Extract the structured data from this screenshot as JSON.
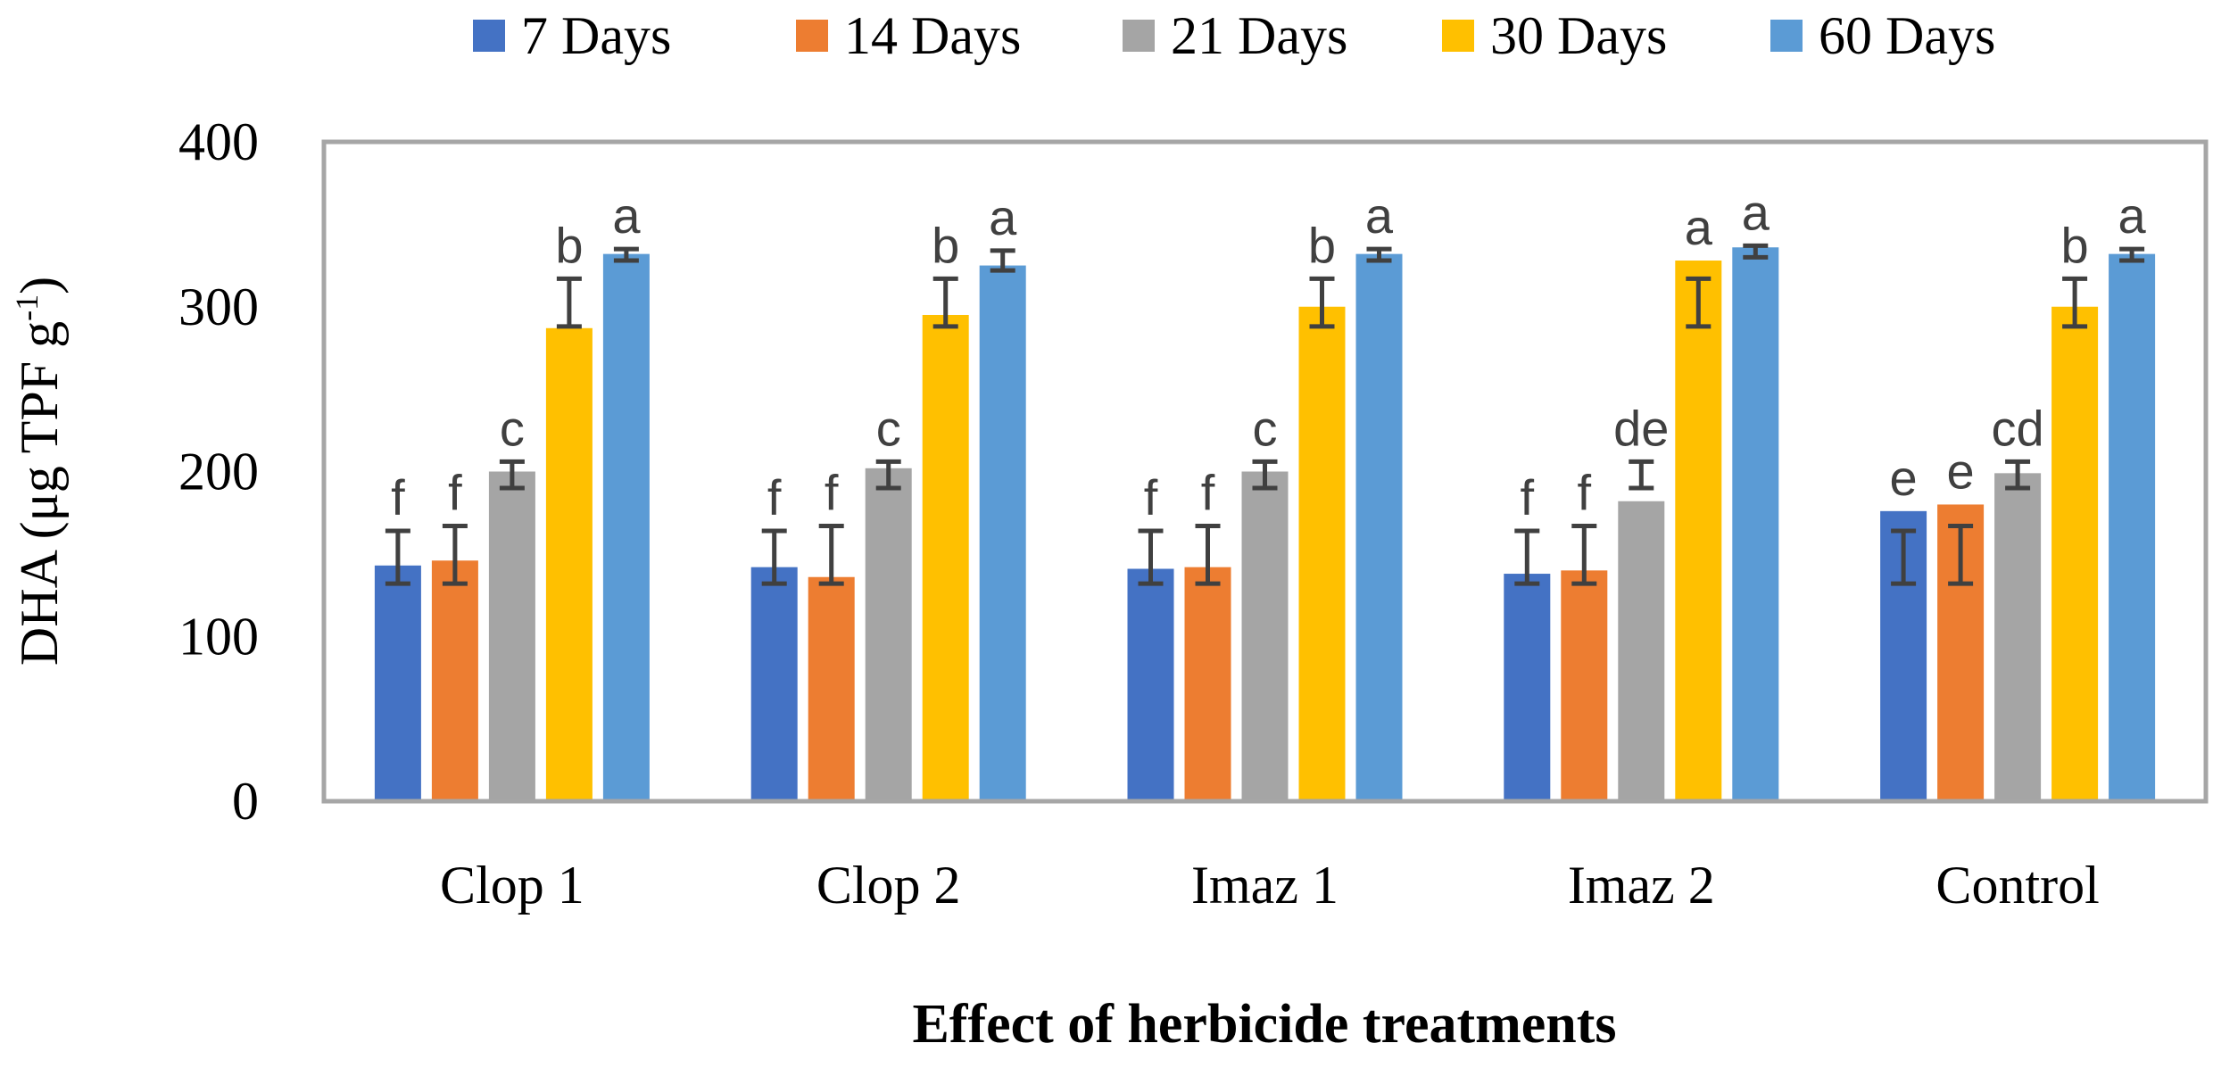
{
  "chart_data": {
    "type": "bar",
    "xlabel": "Effect of herbicide treatments",
    "ylabel_main": "DHA (μg TPF g",
    "ylabel_sup": "-1",
    "ylabel_close": ")",
    "ylim": [
      0,
      400
    ],
    "yticks": [
      0,
      100,
      200,
      300,
      400
    ],
    "grid": false,
    "legend_position": "top",
    "categories": [
      "Clop 1",
      "Clop 2",
      "Imaz 1",
      "Imaz 2",
      "Control"
    ],
    "series": [
      {
        "name": "7 Days",
        "color": "#4472C4",
        "values": [
          143,
          142,
          141,
          138,
          176
        ],
        "errors": [
          [
            132,
            164
          ],
          [
            132,
            164
          ],
          [
            132,
            164
          ],
          [
            132,
            164
          ],
          [
            132,
            164
          ]
        ],
        "letters": [
          "f",
          "f",
          "f",
          "f",
          "e"
        ]
      },
      {
        "name": "14 Days",
        "color": "#ED7D31",
        "values": [
          146,
          136,
          142,
          140,
          180
        ],
        "errors": [
          [
            132,
            167
          ],
          [
            132,
            167
          ],
          [
            132,
            167
          ],
          [
            132,
            167
          ],
          [
            132,
            167
          ]
        ],
        "letters": [
          "f",
          "f",
          "f",
          "f",
          "e"
        ]
      },
      {
        "name": "21 Days",
        "color": "#A5A5A5",
        "values": [
          200,
          202,
          200,
          182,
          199
        ],
        "errors": [
          [
            190,
            206
          ],
          [
            190,
            206
          ],
          [
            190,
            206
          ],
          [
            190,
            206
          ],
          [
            190,
            206
          ]
        ],
        "letters": [
          "c",
          "c",
          "c",
          "de",
          "cd"
        ]
      },
      {
        "name": "30 Days",
        "color": "#FFC000",
        "values": [
          287,
          295,
          300,
          328,
          300
        ],
        "errors": [
          [
            288,
            317
          ],
          [
            288,
            317
          ],
          [
            288,
            317
          ],
          [
            288,
            317
          ],
          [
            288,
            317
          ]
        ],
        "letters": [
          "b",
          "b",
          "b",
          "a",
          "b"
        ]
      },
      {
        "name": "60 Days",
        "color": "#5B9BD5",
        "values": [
          332,
          325,
          332,
          336,
          332
        ],
        "errors": [
          [
            328,
            335
          ],
          [
            322,
            334
          ],
          [
            328,
            335
          ],
          [
            330,
            337
          ],
          [
            328,
            335
          ]
        ],
        "letters": [
          "a",
          "a",
          "a",
          "a",
          "a"
        ]
      }
    ]
  }
}
